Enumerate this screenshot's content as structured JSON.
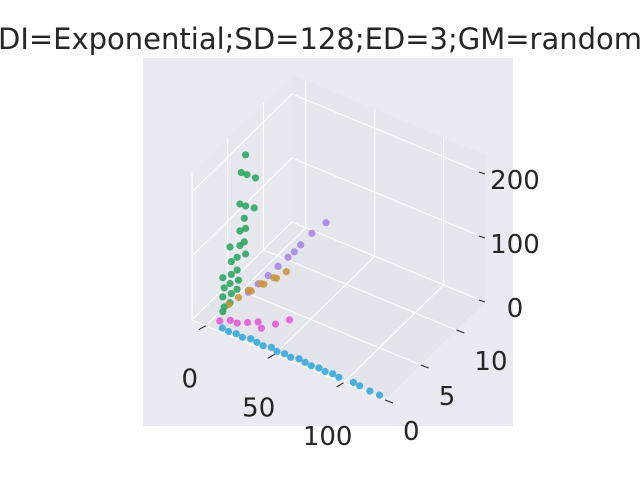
{
  "chart_data": {
    "type": "scatter",
    "title": "DI=Exponential;SD=128;ED=3;GM=random",
    "xlabel": "",
    "ylabel": "",
    "zlabel": "",
    "x_ticks": [
      "0",
      "50",
      "100"
    ],
    "y_ticks": [
      "0",
      "5",
      "10"
    ],
    "z_ticks": [
      "0",
      "100",
      "200"
    ],
    "xlim": [
      -10,
      130
    ],
    "ylim": [
      0,
      14
    ],
    "zlim": [
      0,
      230
    ],
    "grid": true,
    "background": "#eaeaf2",
    "series": [
      {
        "color": "#32a9d8",
        "points": [
          [
            10,
            0.4,
            1
          ],
          [
            15,
            0.3,
            1
          ],
          [
            20,
            0.4,
            1
          ],
          [
            25,
            0.3,
            1
          ],
          [
            30,
            0.5,
            1
          ],
          [
            35,
            0.4,
            1
          ],
          [
            40,
            0.3,
            1
          ],
          [
            45,
            0.5,
            1
          ],
          [
            50,
            0.3,
            1
          ],
          [
            55,
            0.4,
            1
          ],
          [
            60,
            0.3,
            1
          ],
          [
            65,
            0.5,
            1
          ],
          [
            70,
            0.4,
            1
          ],
          [
            75,
            0.3,
            1
          ],
          [
            80,
            0.4,
            1
          ],
          [
            85,
            0.3,
            1
          ],
          [
            90,
            0.4,
            1
          ],
          [
            95,
            0.3,
            1
          ],
          [
            105,
            0.4,
            1
          ],
          [
            110,
            0.3,
            1
          ],
          [
            118,
            0.2,
            1
          ],
          [
            125,
            0.2,
            1
          ]
        ]
      },
      {
        "color": "#2ba55e",
        "points": [
          [
            2,
            2,
            2
          ],
          [
            2,
            3,
            5
          ],
          [
            3,
            2,
            10
          ],
          [
            2,
            4,
            15
          ],
          [
            3,
            3,
            20
          ],
          [
            2,
            2,
            25
          ],
          [
            3,
            4,
            30
          ],
          [
            2,
            3,
            35
          ],
          [
            3,
            2,
            40
          ],
          [
            2,
            4,
            45
          ],
          [
            3,
            3,
            50
          ],
          [
            2,
            2,
            55
          ],
          [
            3,
            5,
            60
          ],
          [
            2,
            4,
            65
          ],
          [
            3,
            3,
            70
          ],
          [
            2,
            5,
            78
          ],
          [
            4,
            4,
            85
          ],
          [
            2,
            3,
            92
          ],
          [
            3,
            5,
            100
          ],
          [
            4,
            4,
            108
          ],
          [
            2,
            5,
            115
          ],
          [
            4,
            6,
            122
          ],
          [
            3,
            5,
            135
          ],
          [
            4,
            4,
            150
          ],
          [
            5,
            6,
            170
          ],
          [
            4,
            5,
            185
          ],
          [
            5,
            4,
            200
          ],
          [
            3,
            5,
            215
          ]
        ]
      },
      {
        "color": "#a584e6",
        "points": [
          [
            5,
            5,
            2
          ],
          [
            7,
            6,
            6
          ],
          [
            9,
            7,
            10
          ],
          [
            11,
            8,
            15
          ],
          [
            13,
            9,
            20
          ],
          [
            15,
            9.5,
            25
          ],
          [
            17,
            10,
            32
          ],
          [
            20,
            11,
            42
          ],
          [
            25,
            12,
            52
          ]
        ]
      },
      {
        "color": "#e458d6",
        "points": [
          [
            5,
            1,
            1
          ],
          [
            10,
            1.5,
            1
          ],
          [
            15,
            1.5,
            1
          ],
          [
            20,
            2,
            1
          ],
          [
            25,
            2.5,
            1
          ],
          [
            30,
            2,
            1
          ],
          [
            35,
            3,
            1
          ],
          [
            40,
            4,
            1
          ]
        ]
      },
      {
        "color": "#c9953a",
        "points": [
          [
            1,
            3,
            1
          ],
          [
            3,
            4,
            3
          ],
          [
            5,
            5,
            5
          ],
          [
            7,
            5,
            6
          ],
          [
            9,
            6,
            8
          ],
          [
            11,
            6,
            9
          ],
          [
            13,
            7,
            10
          ],
          [
            15,
            7,
            11
          ],
          [
            17,
            8,
            12
          ]
        ]
      }
    ]
  }
}
